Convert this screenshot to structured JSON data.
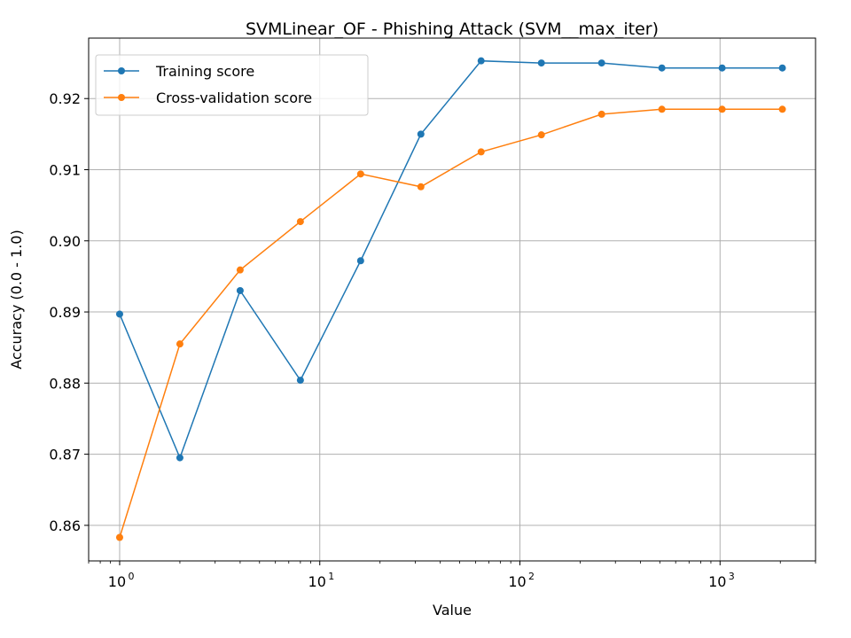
{
  "chart_data": {
    "type": "line",
    "title": "SVMLinear_OF - Phishing Attack (SVM__max_iter)",
    "xlabel": "Value",
    "ylabel": "Accuracy (0.0 - 1.0)",
    "xscale": "log",
    "xlim": [
      0.7,
      3000
    ],
    "ylim": [
      0.855,
      0.9285
    ],
    "grid": true,
    "legend_position": "top-left",
    "x": [
      1,
      2,
      4,
      8,
      16,
      32,
      64,
      128,
      256,
      512,
      1024,
      2048
    ],
    "x_ticks": [
      {
        "value": 1,
        "base": "10",
        "exp": "0"
      },
      {
        "value": 10,
        "base": "10",
        "exp": "1"
      },
      {
        "value": 100,
        "base": "10",
        "exp": "2"
      },
      {
        "value": 1000,
        "base": "10",
        "exp": "3"
      }
    ],
    "y_ticks": [
      {
        "value": 0.86,
        "label": "0.86"
      },
      {
        "value": 0.87,
        "label": "0.87"
      },
      {
        "value": 0.88,
        "label": "0.88"
      },
      {
        "value": 0.89,
        "label": "0.89"
      },
      {
        "value": 0.9,
        "label": "0.90"
      },
      {
        "value": 0.91,
        "label": "0.91"
      },
      {
        "value": 0.92,
        "label": "0.92"
      }
    ],
    "series": [
      {
        "name": "Training score",
        "color": "#1f77b4",
        "values": [
          0.8897,
          0.8695,
          0.893,
          0.8804,
          0.8972,
          0.915,
          0.9253,
          0.925,
          0.925,
          0.9243,
          0.9243,
          0.9243
        ]
      },
      {
        "name": "Cross-validation score",
        "color": "#ff7f0e",
        "values": [
          0.8583,
          0.8855,
          0.8959,
          0.9027,
          0.9094,
          0.9076,
          0.9125,
          0.9149,
          0.9178,
          0.9185,
          0.9185,
          0.9185
        ]
      }
    ]
  }
}
